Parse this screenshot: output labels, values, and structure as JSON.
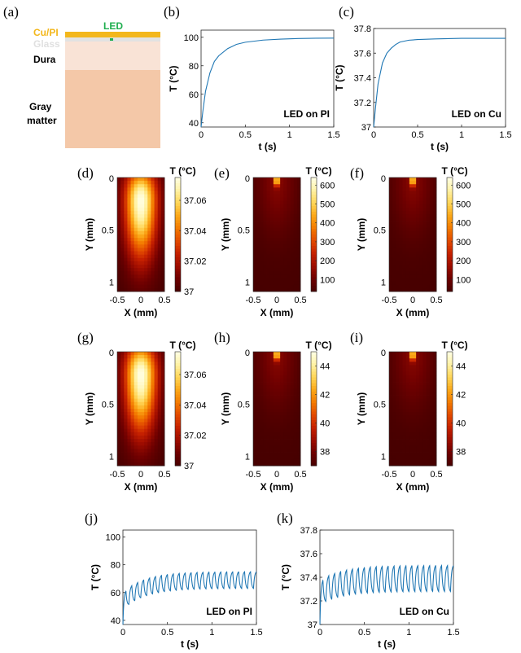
{
  "panel_labels": {
    "a": "(a)",
    "b": "(b)",
    "c": "(c)",
    "d": "(d)",
    "e": "(e)",
    "f": "(f)",
    "g": "(g)",
    "h": "(h)",
    "i": "(i)",
    "j": "(j)",
    "k": "(k)"
  },
  "schematic": {
    "led_label": "LED",
    "cu_pi_label": "Cu/PI",
    "glass_label": "Glass",
    "dura_label": "Dura",
    "gray_label_1": "Gray",
    "gray_label_2": "matter",
    "colors": {
      "cu_pi": "#f3b71c",
      "led": "#1fae4f",
      "glass": "#e2e2e2",
      "dura": "#f9e3d6",
      "gray_matter": "#f4c8a8"
    }
  },
  "colormap": [
    "#470000",
    "#6e0000",
    "#9c0c00",
    "#c52000",
    "#e24a00",
    "#f37a00",
    "#fba919",
    "#ffd658",
    "#fff2a6",
    "#ffffe6"
  ],
  "chart_data": [
    {
      "id": "b",
      "type": "line",
      "xlabel": "t (s)",
      "ylabel": "T (°C)",
      "xlim": [
        0,
        1.5
      ],
      "ylim": [
        37,
        105
      ],
      "xticks": [
        0,
        0.5,
        1,
        1.5
      ],
      "yticks": [
        40,
        60,
        80,
        100
      ],
      "annotation": "LED on PI",
      "color": "#1f77b4",
      "series": [
        {
          "x": [
            0,
            0.02,
            0.05,
            0.1,
            0.15,
            0.2,
            0.3,
            0.4,
            0.5,
            0.7,
            0.9,
            1.1,
            1.3,
            1.5
          ],
          "y": [
            37,
            48,
            62,
            75,
            83,
            87,
            92,
            95,
            96.5,
            98,
            98.7,
            99.1,
            99.3,
            99.4
          ]
        }
      ]
    },
    {
      "id": "c",
      "type": "line",
      "xlabel": "t (s)",
      "ylabel": "T (°C)",
      "xlim": [
        0,
        1.5
      ],
      "ylim": [
        37,
        37.8
      ],
      "xticks": [
        0,
        0.5,
        1,
        1.5
      ],
      "yticks": [
        37,
        37.2,
        37.4,
        37.6,
        37.8
      ],
      "annotation": "LED on Cu",
      "color": "#1f77b4",
      "series": [
        {
          "x": [
            0,
            0.02,
            0.05,
            0.1,
            0.15,
            0.2,
            0.25,
            0.3,
            0.4,
            0.5,
            0.7,
            1,
            1.5
          ],
          "y": [
            37,
            37.15,
            37.35,
            37.52,
            37.6,
            37.64,
            37.67,
            37.69,
            37.705,
            37.71,
            37.715,
            37.72,
            37.72
          ]
        }
      ]
    },
    {
      "id": "d",
      "type": "heatmap",
      "xlabel": "X (mm)",
      "ylabel": "Y (mm)",
      "colorbar_title": "T (°C)",
      "xlim": [
        -0.5,
        0.5
      ],
      "ylim": [
        0,
        1.1
      ],
      "xticks": [
        -0.5,
        0,
        0.5
      ],
      "yticks": [
        0,
        0.5,
        1
      ],
      "cbar_ticks": [
        37,
        37.02,
        37.04,
        37.06
      ],
      "cbar_range": [
        37,
        37.075
      ],
      "hotspot": {
        "x": 0,
        "y": 0.22
      },
      "spread": "wide"
    },
    {
      "id": "e",
      "type": "heatmap",
      "xlabel": "X (mm)",
      "ylabel": "Y (mm)",
      "colorbar_title": "T (°C)",
      "xlim": [
        -0.5,
        0.5
      ],
      "ylim": [
        0,
        1.1
      ],
      "xticks": [
        -0.5,
        0,
        0.5
      ],
      "yticks": [
        0,
        0.5,
        1
      ],
      "cbar_ticks": [
        100,
        200,
        300,
        400,
        500,
        600
      ],
      "cbar_range": [
        37,
        640
      ],
      "hotspot": {
        "x": 0,
        "y": 0.03
      },
      "spread": "narrow"
    },
    {
      "id": "f",
      "type": "heatmap",
      "xlabel": "X (mm)",
      "ylabel": "Y (mm)",
      "colorbar_title": "T (°C)",
      "xlim": [
        -0.5,
        0.5
      ],
      "ylim": [
        0,
        1.1
      ],
      "xticks": [
        -0.5,
        0,
        0.5
      ],
      "yticks": [
        0,
        0.5,
        1
      ],
      "cbar_ticks": [
        100,
        200,
        300,
        400,
        500,
        600
      ],
      "cbar_range": [
        37,
        640
      ],
      "hotspot": {
        "x": 0,
        "y": 0.03
      },
      "spread": "narrow"
    },
    {
      "id": "g",
      "type": "heatmap",
      "xlabel": "X (mm)",
      "ylabel": "Y (mm)",
      "colorbar_title": "T (°C)",
      "xlim": [
        -0.5,
        0.5
      ],
      "ylim": [
        0,
        1.1
      ],
      "xticks": [
        -0.5,
        0,
        0.5
      ],
      "yticks": [
        0,
        0.5,
        1
      ],
      "cbar_ticks": [
        37,
        37.02,
        37.04,
        37.06
      ],
      "cbar_range": [
        37,
        37.075
      ],
      "hotspot": {
        "x": 0,
        "y": 0.22
      },
      "spread": "wide"
    },
    {
      "id": "h",
      "type": "heatmap",
      "xlabel": "X (mm)",
      "ylabel": "Y (mm)",
      "colorbar_title": "T (°C)",
      "xlim": [
        -0.5,
        0.5
      ],
      "ylim": [
        0,
        1.1
      ],
      "xticks": [
        -0.5,
        0,
        0.5
      ],
      "yticks": [
        0,
        0.5,
        1
      ],
      "cbar_ticks": [
        38,
        40,
        42,
        44
      ],
      "cbar_range": [
        37,
        45
      ],
      "hotspot": {
        "x": 0,
        "y": 0.03
      },
      "spread": "narrow"
    },
    {
      "id": "i",
      "type": "heatmap",
      "xlabel": "X (mm)",
      "ylabel": "Y (mm)",
      "colorbar_title": "T (°C)",
      "xlim": [
        -0.5,
        0.5
      ],
      "ylim": [
        0,
        1.1
      ],
      "xticks": [
        -0.5,
        0,
        0.5
      ],
      "yticks": [
        0,
        0.5,
        1
      ],
      "cbar_ticks": [
        38,
        40,
        42,
        44
      ],
      "cbar_range": [
        37,
        45
      ],
      "hotspot": {
        "x": 0,
        "y": 0.03
      },
      "spread": "narrow"
    },
    {
      "id": "j",
      "type": "line",
      "xlabel": "t (s)",
      "ylabel": "T (°C)",
      "xlim": [
        0,
        1.5
      ],
      "ylim": [
        37,
        105
      ],
      "xticks": [
        0,
        0.5,
        1,
        1.5
      ],
      "yticks": [
        40,
        60,
        80,
        100
      ],
      "annotation": "LED on PI",
      "color": "#1f77b4",
      "pulsed": {
        "period_s": 0.0667,
        "duty": 0.5,
        "start": 37,
        "peak_first": 60,
        "peak_final": 75,
        "trough_first": 48,
        "trough_final": 63
      }
    },
    {
      "id": "k",
      "type": "line",
      "xlabel": "t (s)",
      "ylabel": "T (°C)",
      "xlim": [
        0,
        1.5
      ],
      "ylim": [
        37,
        37.8
      ],
      "xticks": [
        0,
        0.5,
        1,
        1.5
      ],
      "yticks": [
        37,
        37.2,
        37.4,
        37.6,
        37.8
      ],
      "annotation": "LED on Cu",
      "color": "#1f77b4",
      "pulsed": {
        "period_s": 0.0667,
        "duty": 0.5,
        "start": 37,
        "peak_first": 37.37,
        "peak_final": 37.5,
        "trough_first": 37.17,
        "trough_final": 37.28
      }
    }
  ]
}
